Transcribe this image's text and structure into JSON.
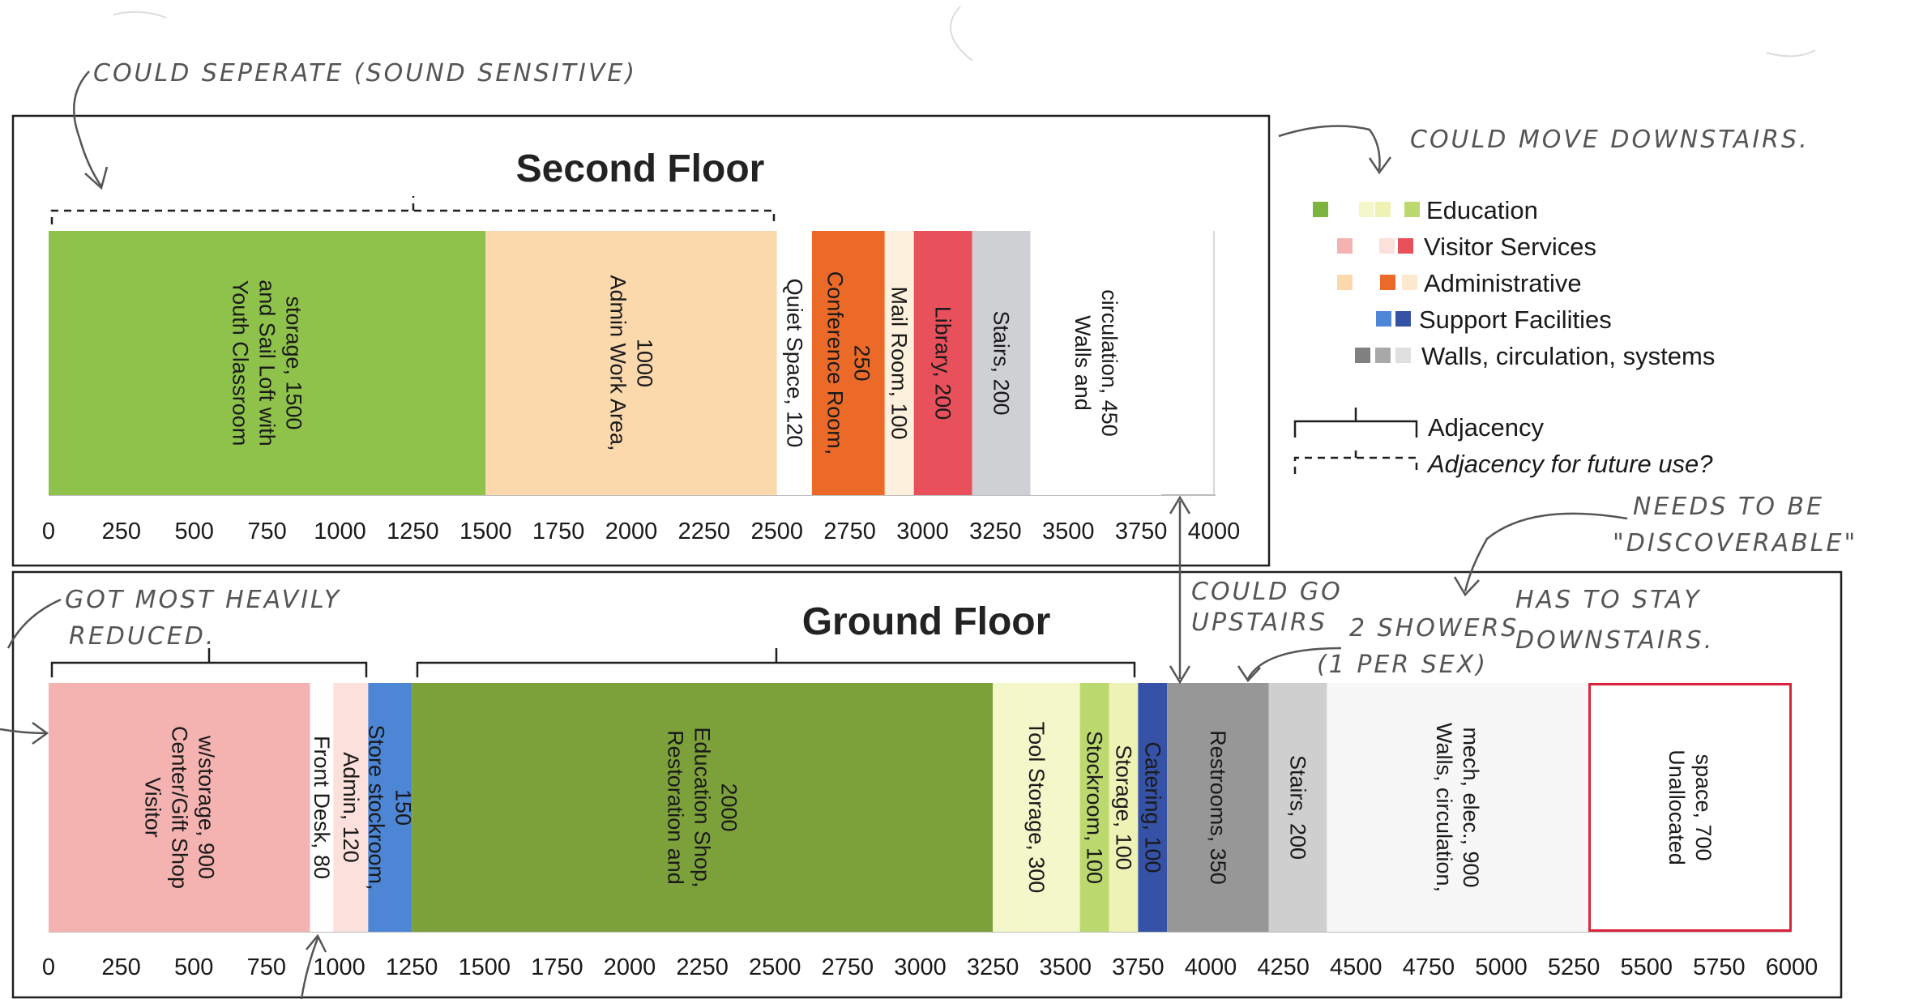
{
  "annotations": {
    "could_separate": "COULD SEPERATE (SOUND SENSITIVE)",
    "could_move_downstairs": "COULD MOVE DOWNSTAIRS.",
    "got_most_heavily_reduced_1": "GOT MOST HEAVILY",
    "got_most_heavily_reduced_2": "REDUCED.",
    "could_go_upstairs_1": "COULD GO",
    "could_go_upstairs_2": "UPSTAIRS",
    "two_showers_1": "2 SHOWERS",
    "two_showers_2": "(1 PER SEX)",
    "needs_discoverable_1": "NEEDS TO BE",
    "needs_discoverable_2": "\"DISCOVERABLE\"",
    "has_to_stay_1": "HAS TO STAY",
    "has_to_stay_2": "DOWNSTAIRS."
  },
  "legend": {
    "education": {
      "label": "Education",
      "colors": [
        "#7db33f",
        "#f4f7c9",
        "#eef2b4",
        "#bcd96f"
      ]
    },
    "visitor_services": {
      "label": "Visitor Services",
      "colors": [
        "#f4b2b0",
        "#fbe0dc",
        "#e8505b"
      ]
    },
    "administrative": {
      "label": "Administrative",
      "colors": [
        "#fbd9ad",
        "#ec6a28",
        "#fde9cf"
      ]
    },
    "support_facilities": {
      "label": "Support Facilities",
      "colors": [
        "#4e86d6",
        "#3552a6"
      ]
    },
    "walls": {
      "label": "Walls, circulation, systems",
      "colors": [
        "#808080",
        "#a8a8a8",
        "#e0e0e0"
      ]
    },
    "adjacency": "Adjacency",
    "adjacency_future": "Adjacency for future use?"
  },
  "chart_data": [
    {
      "type": "bar",
      "title": "Second Floor",
      "xlim": [
        0,
        4000
      ],
      "ticks": [
        "0",
        "250",
        "500",
        "750",
        "1000",
        "1250",
        "1500",
        "1750",
        "2000",
        "2250",
        "2500",
        "2750",
        "3000",
        "3250",
        "3500",
        "3750",
        "4000"
      ],
      "segments": [
        {
          "start": 0,
          "end": 1500,
          "color": "#8fc24a",
          "lines": [
            "Youth Classroom",
            "and Sail Loft with",
            "storage, 1500"
          ]
        },
        {
          "start": 1500,
          "end": 2500,
          "color": "#fcd9ad",
          "lines": [
            "Admin Work Area,",
            "1000"
          ]
        },
        {
          "start": 2500,
          "end": 2620,
          "color": "#ffffff",
          "lines": [
            "Quiet Space, 120"
          ]
        },
        {
          "start": 2620,
          "end": 2870,
          "color": "#ec6a28",
          "lines": [
            "Conference Room,",
            "250"
          ]
        },
        {
          "start": 2870,
          "end": 2970,
          "color": "#fdf0dd",
          "lines": [
            "Mail Room, 100"
          ]
        },
        {
          "start": 2970,
          "end": 3170,
          "color": "#e8505b",
          "lines": [
            "Library, 200"
          ]
        },
        {
          "start": 3170,
          "end": 3370,
          "color": "#cfd0d4",
          "lines": [
            "Stairs, 200"
          ]
        },
        {
          "start": 3370,
          "end": 3820,
          "color": "#ffffff",
          "lines": [
            "Walls and",
            "circulation, 450"
          ]
        }
      ]
    },
    {
      "type": "bar",
      "title": "Ground Floor",
      "xlim": [
        0,
        6000
      ],
      "ticks": [
        "0",
        "250",
        "500",
        "750",
        "1000",
        "1250",
        "1500",
        "1750",
        "2000",
        "2250",
        "2500",
        "2750",
        "3000",
        "3250",
        "3500",
        "3750",
        "4000",
        "4250",
        "4500",
        "4750",
        "5000",
        "5250",
        "5500",
        "5750",
        "6000"
      ],
      "segments": [
        {
          "start": 0,
          "end": 900,
          "color": "#f4b2b0",
          "lines": [
            "Visitor",
            "Center/Gift Shop",
            "w/storage, 900"
          ]
        },
        {
          "start": 900,
          "end": 980,
          "color": "#ffffff",
          "lines": [
            "Front Desk, 80"
          ]
        },
        {
          "start": 980,
          "end": 1100,
          "color": "#fbe0dc",
          "lines": [
            "Admin, 120"
          ]
        },
        {
          "start": 1100,
          "end": 1250,
          "color": "#4e86d6",
          "lines": [
            "Store stockroom,",
            "150"
          ]
        },
        {
          "start": 1250,
          "end": 3250,
          "color": "#7da13a",
          "lines": [
            "Restoration and",
            "Education Shop,",
            "2000"
          ]
        },
        {
          "start": 3250,
          "end": 3550,
          "color": "#f4f7c9",
          "lines": [
            "Tool Storage, 300"
          ]
        },
        {
          "start": 3550,
          "end": 3650,
          "color": "#bcd96f",
          "lines": [
            "Stockroom, 100"
          ]
        },
        {
          "start": 3650,
          "end": 3750,
          "color": "#eef2b4",
          "lines": [
            "Storage, 100"
          ]
        },
        {
          "start": 3750,
          "end": 3850,
          "color": "#3552a6",
          "lines": [
            "Catering, 100"
          ]
        },
        {
          "start": 3850,
          "end": 4200,
          "color": "#979797",
          "lines": [
            "Restrooms, 350"
          ]
        },
        {
          "start": 4200,
          "end": 4400,
          "color": "#cfcfcf",
          "lines": [
            "Stairs, 200"
          ]
        },
        {
          "start": 4400,
          "end": 5300,
          "color": "#f7f7f7",
          "lines": [
            "Walls, circulation,",
            "mech, elec., 900"
          ]
        },
        {
          "start": 5300,
          "end": 6000,
          "color": "#ffffff",
          "outline": "#d8243a",
          "text_color": "#d8243a",
          "lines": [
            "Unallocated",
            "space, 700"
          ]
        }
      ]
    }
  ]
}
